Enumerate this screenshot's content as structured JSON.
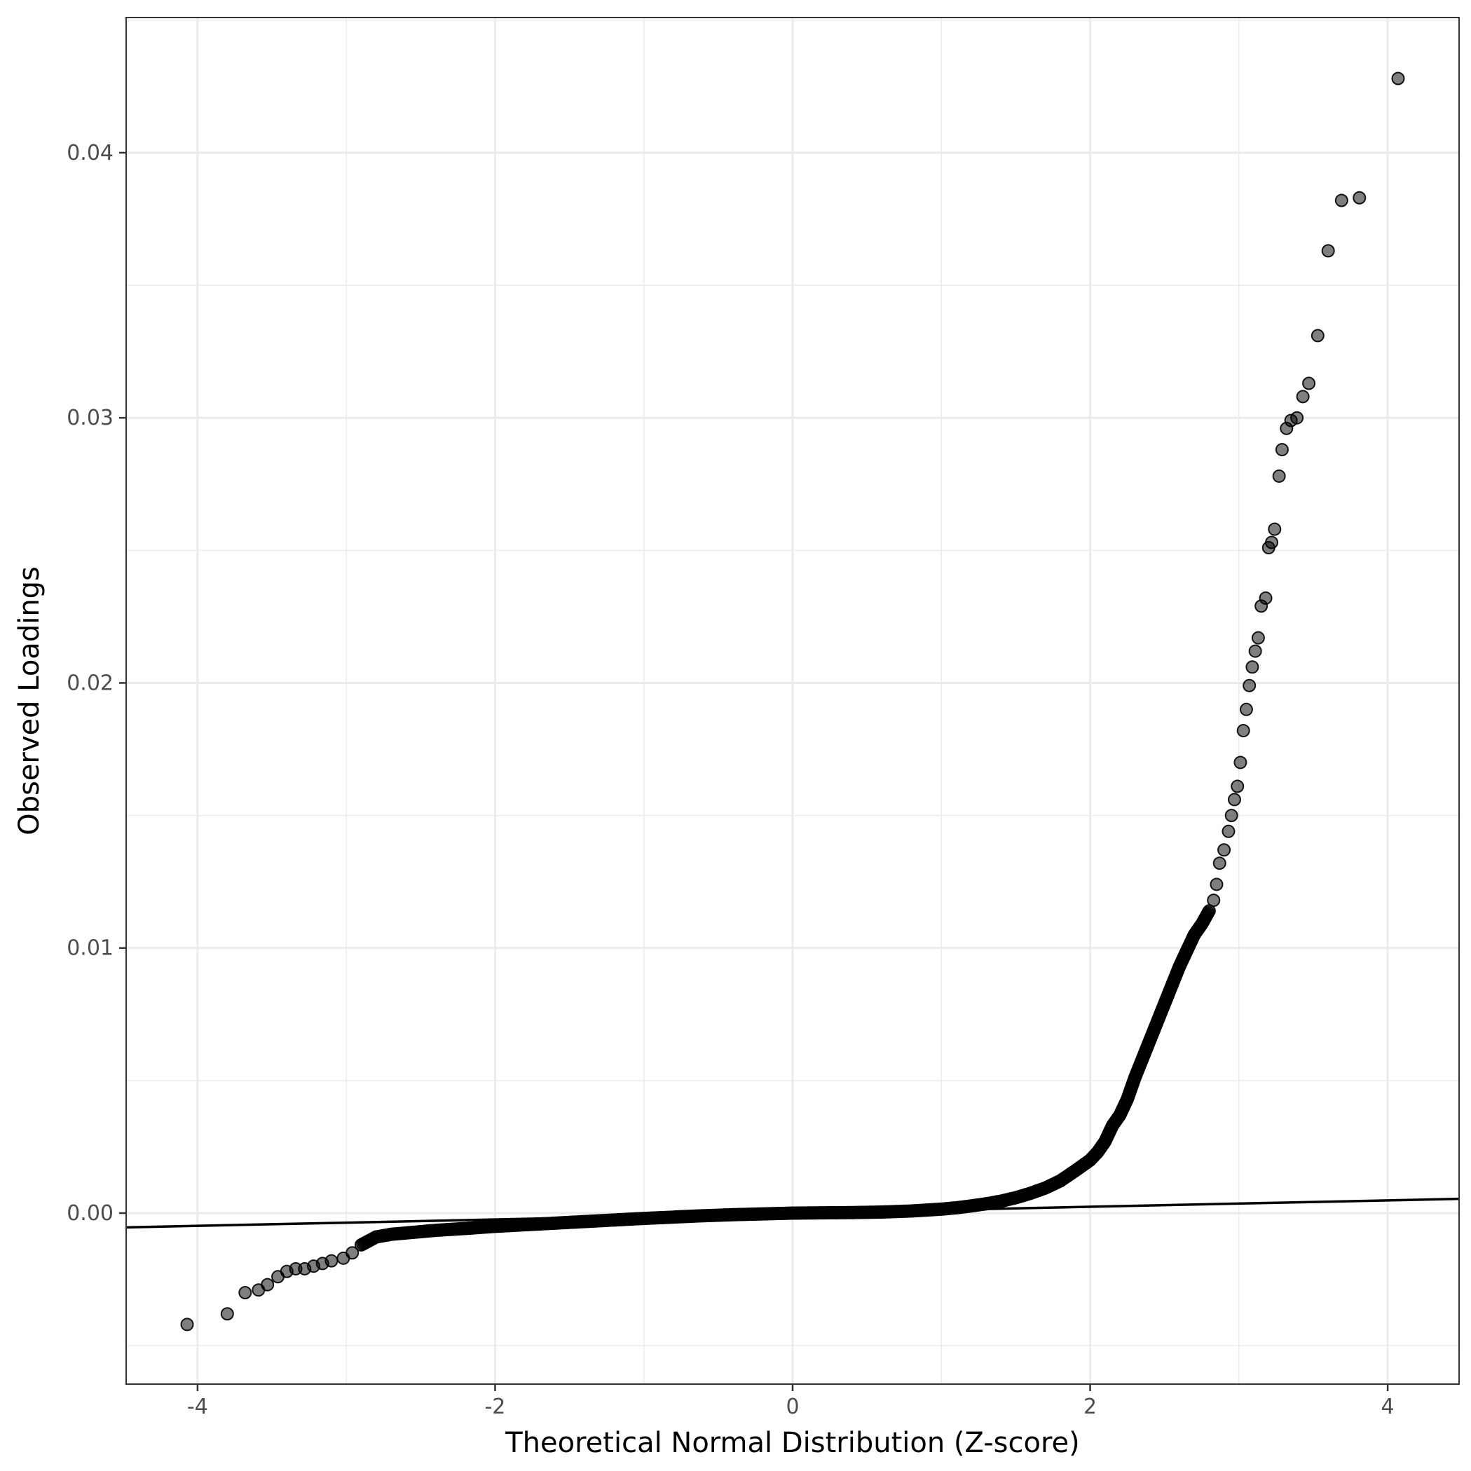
{
  "chart_data": {
    "type": "scatter",
    "xlabel": "Theoretical Normal Distribution (Z-score)",
    "ylabel": "Observed Loadings",
    "xlim": [
      -4.48,
      4.48
    ],
    "ylim": [
      -0.00645,
      0.0451
    ],
    "x_ticks": [
      -4,
      -2,
      0,
      2,
      4
    ],
    "x_tick_labels": [
      "-4",
      "-2",
      "0",
      "2",
      "4"
    ],
    "y_ticks": [
      0.0,
      0.01,
      0.02,
      0.03,
      0.04
    ],
    "y_tick_labels": [
      "0.00",
      "0.01",
      "0.02",
      "0.03",
      "0.04"
    ],
    "grid": true,
    "theme": "black-and-white",
    "reference_line": {
      "intercept": 0.0,
      "slope": 0.00012,
      "color": "#000000"
    },
    "point_color": "#000000",
    "point_opacity": 0.5,
    "dense_core": {
      "description_note": "",
      "x": [
        -2.9,
        -2.8,
        -2.7,
        -2.6,
        -2.5,
        -2.4,
        -2.2,
        -2.0,
        -1.8,
        -1.6,
        -1.4,
        -1.2,
        -1.0,
        -0.8,
        -0.6,
        -0.4,
        -0.2,
        0.0,
        0.2,
        0.4,
        0.6,
        0.8,
        1.0,
        1.1,
        1.2,
        1.3,
        1.4,
        1.5,
        1.6,
        1.7,
        1.8,
        1.9,
        2.0,
        2.05,
        2.1,
        2.15,
        2.2,
        2.25,
        2.3,
        2.35,
        2.4,
        2.45,
        2.5,
        2.55,
        2.6,
        2.65,
        2.7,
        2.75,
        2.8
      ],
      "y": [
        -0.0012,
        -0.0009,
        -0.0008,
        -0.00075,
        -0.0007,
        -0.00065,
        -0.00058,
        -0.0005,
        -0.00044,
        -0.00038,
        -0.00032,
        -0.00026,
        -0.0002,
        -0.00015,
        -0.0001,
        -6e-05,
        -3e-05,
        0.0,
        1e-05,
        2e-05,
        4e-05,
        8e-05,
        0.00015,
        0.0002,
        0.00027,
        0.00035,
        0.00045,
        0.00058,
        0.00075,
        0.00095,
        0.00122,
        0.0016,
        0.002,
        0.0023,
        0.0027,
        0.0033,
        0.0037,
        0.0043,
        0.0051,
        0.0058,
        0.0065,
        0.0072,
        0.0079,
        0.0086,
        0.0093,
        0.0099,
        0.0105,
        0.0109,
        0.0114
      ]
    },
    "sparse_points": {
      "x": [
        -4.07,
        -3.8,
        -3.68,
        -3.59,
        -3.53,
        -3.46,
        -3.4,
        -3.34,
        -3.28,
        -3.22,
        -3.16,
        -3.1,
        -3.02,
        -2.96,
        2.83,
        2.85,
        2.87,
        2.9,
        2.93,
        2.95,
        2.97,
        2.99,
        3.01,
        3.03,
        3.05,
        3.07,
        3.09,
        3.11,
        3.13,
        3.15,
        3.18,
        3.2,
        3.22,
        3.24,
        3.27,
        3.29,
        3.32,
        3.35,
        3.39,
        3.43,
        3.47,
        3.53,
        3.6,
        3.69,
        3.81,
        4.07
      ],
      "y": [
        -0.0042,
        -0.0038,
        -0.003,
        -0.0029,
        -0.0027,
        -0.0024,
        -0.0022,
        -0.0021,
        -0.0021,
        -0.002,
        -0.0019,
        -0.0018,
        -0.0017,
        -0.0015,
        0.0118,
        0.0124,
        0.0132,
        0.0137,
        0.0144,
        0.015,
        0.0156,
        0.0161,
        0.017,
        0.0182,
        0.019,
        0.0199,
        0.0206,
        0.0212,
        0.0217,
        0.0229,
        0.0232,
        0.0251,
        0.0253,
        0.0258,
        0.0278,
        0.0288,
        0.0296,
        0.0299,
        0.03,
        0.0308,
        0.0313,
        0.0331,
        0.0363,
        0.0382,
        0.0383,
        0.0428
      ]
    }
  }
}
